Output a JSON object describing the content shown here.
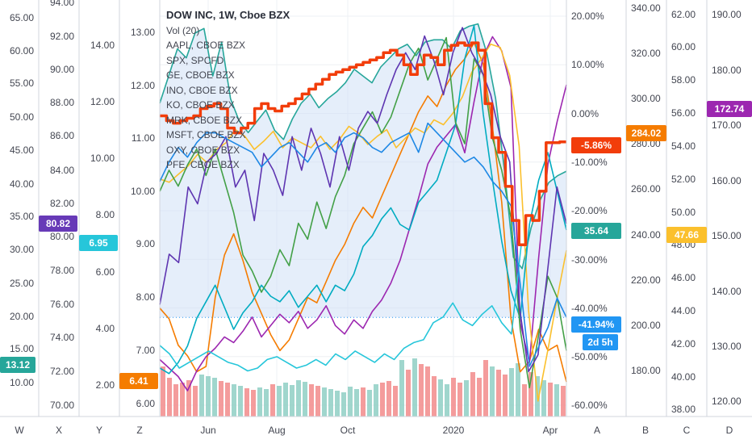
{
  "chart_data": {
    "type": "line",
    "title": "DOW INC, 1W, Cboe BZX",
    "legend": [
      "Vol (20)",
      "AAPL, CBOE BZX",
      "SPX, SPCFD",
      "GE, CBOE BZX",
      "INO, CBOE BZX",
      "KO, CBOE BZX",
      "MRK, CBOE BZX",
      "MSFT, CBOE BZX",
      "OXY, CBOE BZX",
      "PFE, CBOE BZX"
    ],
    "x_ticks": [
      "Jun",
      "Aug",
      "Oct",
      "2020",
      "Apr"
    ],
    "axes": {
      "W": {
        "ticks": [
          "65.00",
          "60.00",
          "55.00",
          "50.00",
          "45.00",
          "40.00",
          "35.00",
          "30.00",
          "25.00",
          "20.00",
          "15.00",
          "10.00"
        ],
        "badge": "13.12",
        "badge_color": "#26a69a"
      },
      "X": {
        "ticks": [
          "94.00",
          "92.00",
          "90.00",
          "88.00",
          "86.00",
          "84.00",
          "82.00",
          "80.00",
          "78.00",
          "76.00",
          "74.00",
          "72.00",
          "70.00"
        ],
        "badge": "80.82",
        "badge_color": "#673ab7"
      },
      "Y": {
        "ticks": [
          "14.00",
          "12.00",
          "10.00",
          "8.00",
          "6.00",
          "4.00",
          "2.00"
        ],
        "badge": "6.95",
        "badge_color": "#26c6da"
      },
      "Z": {
        "ticks": [
          "13.00",
          "12.00",
          "11.00",
          "10.00",
          "9.00",
          "8.00",
          "7.00",
          "6.00"
        ],
        "badge": "6.41",
        "badge_color": "#f57c00"
      },
      "A": {
        "ticks": [
          "20.00%",
          "10.00%",
          "0.00%",
          "-10.00%",
          "-20.00%",
          "-30.00%",
          "-40.00%",
          "-50.00%",
          "-60.00%"
        ],
        "badges": [
          {
            "text": "-5.86%",
            "color": "#f23d0a"
          },
          {
            "text": "35.64",
            "color": "#26a69a"
          },
          {
            "text": "-41.94%",
            "color": "#2196f3"
          },
          {
            "text": "2d 5h",
            "color": "#2196f3"
          }
        ]
      },
      "B": {
        "ticks": [
          "340.00",
          "320.00",
          "300.00",
          "280.00",
          "260.00",
          "240.00",
          "220.00",
          "200.00",
          "180.00"
        ],
        "badge": "284.02",
        "badge_color": "#f57c00"
      },
      "C": {
        "ticks": [
          "62.00",
          "60.00",
          "58.00",
          "56.00",
          "54.00",
          "52.00",
          "50.00",
          "48.00",
          "46.00",
          "44.00",
          "42.00",
          "40.00",
          "38.00"
        ],
        "badge": "47.66",
        "badge_color": "#fbc02d"
      },
      "D": {
        "ticks": [
          "190.00",
          "180.00",
          "170.00",
          "160.00",
          "150.00",
          "140.00",
          "130.00",
          "120.00"
        ],
        "badge": "172.74",
        "badge_color": "#9c27b0"
      }
    },
    "bottom_labels": [
      "W",
      "X",
      "Y",
      "Z",
      "A",
      "B",
      "C",
      "D"
    ],
    "series": [
      {
        "name": "DOW INC",
        "color": "#f23d0a",
        "width": 3.5,
        "step": true,
        "values": [
          -0.5,
          -1.5,
          -2,
          -1.5,
          -1,
          -0.5,
          1,
          1.5,
          2,
          1,
          -3,
          -4,
          -3,
          -2,
          1,
          2,
          1,
          0.5,
          1.5,
          2,
          3,
          4,
          5,
          6,
          7,
          8,
          8.5,
          9,
          9.5,
          10,
          10.5,
          11,
          11.5,
          12.5,
          13,
          12,
          10,
          8,
          10,
          12,
          11.5,
          10,
          13,
          14,
          14.5,
          14,
          14.5,
          13,
          2,
          -5,
          -8,
          -15,
          -22,
          -27,
          -21,
          -22,
          -16,
          -6,
          -6,
          -5.86
        ]
      },
      {
        "name": "SPX, SPCFD",
        "color": "#26a69a",
        "width": 1.6,
        "values": [
          298,
          310,
          322,
          318,
          329,
          331,
          310,
          325,
          300,
          290,
          285,
          290,
          295,
          286,
          282,
          291,
          298,
          302,
          296,
          300,
          303,
          307,
          313,
          310,
          307,
          314,
          318,
          322,
          324,
          319,
          325,
          326,
          326,
          322,
          330,
          332,
          333,
          320,
          300,
          268,
          230,
          225,
          243,
          255,
          263,
          266,
          268
        ]
      },
      {
        "name": "AAPL, CBOE BZX",
        "color": "#f57c00",
        "width": 1.6,
        "values": [
          7.8,
          7.6,
          7.1,
          6.9,
          6.6,
          6.7,
          8.0,
          8.8,
          9.2,
          8.7,
          8.1,
          7.7,
          7.3,
          7.0,
          7.2,
          7.6,
          8.0,
          7.9,
          8.3,
          8.7,
          9.0,
          9.4,
          9.7,
          9.5,
          9.9,
          10.3,
          10.7,
          11.1,
          11.5,
          11.8,
          11.6,
          12.0,
          12.3,
          12.5,
          12.8,
          12.4,
          11.2,
          9.8,
          7.6,
          6.6,
          6.8,
          7.4,
          7.0,
          7.1,
          6.41
        ]
      },
      {
        "name": "INO, CBOE BZX",
        "color": "#9c27b0",
        "width": 1.6,
        "values": [
          2.9,
          2.6,
          2.3,
          1.8,
          2.5,
          3.0,
          3.3,
          3.7,
          3.5,
          3.9,
          4.4,
          3.7,
          4.1,
          4.5,
          4.2,
          4.6,
          4.0,
          4.3,
          4.8,
          4.1,
          3.8,
          4.3,
          4.0,
          4.6,
          5.0,
          5.6,
          6.4,
          7.5,
          8.6,
          9.8,
          10.4,
          10.8,
          11.2,
          10.2,
          12.0,
          13.6,
          14.3,
          13.8,
          12.5,
          4.2,
          2.8,
          6.5,
          9.8,
          11.3,
          12.6
        ]
      },
      {
        "name": "KO, CBOE BZX",
        "color": "#fbc02d",
        "width": 1.6,
        "values": [
          52.0,
          51.8,
          52.3,
          52.8,
          53.5,
          53.0,
          53.8,
          54.2,
          55.0,
          54.6,
          53.8,
          54.3,
          54.9,
          53.9,
          54.5,
          54.2,
          53.9,
          54.6,
          53.8,
          54.4,
          55.2,
          54.8,
          54.1,
          54.6,
          55.0,
          53.9,
          54.5,
          55.1,
          54.8,
          55.6,
          55.3,
          56.0,
          57.0,
          58.5,
          59.3,
          60.2,
          60.0,
          58.3,
          54.0,
          44.0,
          38.5,
          41.5,
          44.7,
          47.66
        ]
      },
      {
        "name": "MSFT, CBOE BZX",
        "color": "#00acc1",
        "width": 1.6,
        "values": [
          126,
          125,
          127,
          130,
          135,
          138,
          141,
          137,
          133,
          136,
          138,
          141,
          139,
          138,
          140,
          137,
          139,
          141,
          138,
          141,
          140,
          143,
          148,
          150,
          153,
          155,
          152,
          151,
          156,
          158,
          160,
          165,
          170,
          182,
          188,
          172,
          160,
          149,
          140,
          135,
          152,
          160,
          165,
          158,
          151
        ]
      },
      {
        "name": "GE, CBOE BZX",
        "color": "#43a047",
        "width": 1.6,
        "values": [
          10.0,
          10.4,
          10.1,
          10.5,
          10.8,
          10.3,
          10.8,
          10.2,
          9.6,
          8.8,
          8.5,
          8.1,
          8.4,
          8.9,
          8.6,
          9.4,
          9.1,
          9.8,
          9.3,
          9.9,
          10.3,
          10.9,
          11.2,
          11.5,
          11.1,
          11.4,
          11.9,
          12.4,
          12.7,
          12.1,
          12.5,
          12.9,
          11.3,
          10.9,
          12.5,
          12.2,
          11.0,
          10.4,
          9.5,
          7.4,
          6.3,
          7.3,
          8.4,
          8.0,
          7.0
        ]
      },
      {
        "name": "MRK, CBOE BZX",
        "color": "#5e35b1",
        "width": 1.6,
        "values": [
          76.0,
          79.0,
          78.5,
          83.0,
          82.0,
          84.5,
          85.0,
          86.0,
          83.0,
          84.0,
          81.0,
          85.0,
          84.0,
          82.5,
          86.0,
          84.0,
          86.5,
          85.0,
          83.0,
          86.0,
          84.0,
          86.5,
          87.5,
          86.8,
          88.5,
          90.0,
          91.0,
          90.0,
          92.0,
          90.5,
          88.5,
          91.0,
          92.5,
          91.0,
          90.0,
          88.5,
          86.0,
          84.5,
          76.0,
          72.0,
          73.0,
          78.0,
          83.0,
          80.82
        ]
      },
      {
        "name": "OXY, CBOE BZX",
        "color": "#26c6da",
        "width": 1.6,
        "values": [
          3.4,
          3.1,
          2.6,
          2.8,
          3.0,
          3.2,
          3.0,
          2.8,
          2.7,
          2.5,
          2.6,
          2.9,
          3.0,
          2.8,
          2.6,
          2.7,
          2.9,
          2.7,
          3.1,
          2.9,
          3.2,
          3.0,
          2.8,
          3.1,
          2.9,
          3.3,
          3.5,
          3.6,
          4.2,
          4.4,
          4.9,
          4.3,
          4.1,
          4.5,
          4.8,
          4.2,
          3.8,
          6.95
        ]
      },
      {
        "name": "PFE, CBOE BZX",
        "color": "#1e88e5",
        "width": 1.6,
        "values": [
          -14,
          -10,
          -7,
          -9,
          -6,
          -4,
          -4,
          -5,
          -6,
          -7,
          -8,
          -11,
          -9,
          -7,
          -6,
          -8,
          -10,
          -7,
          -6,
          -8,
          -5,
          -4,
          -5,
          -7,
          -8,
          -6,
          -5,
          -4,
          -8,
          -2,
          -4,
          -6,
          -8,
          -10,
          -9,
          -11,
          -14,
          -16,
          -19,
          -35,
          -52,
          -48,
          -44,
          -38,
          -41.94
        ]
      }
    ],
    "volume": {
      "values": [
        62,
        48,
        40,
        42,
        45,
        38,
        52,
        50,
        48,
        44,
        42,
        40,
        38,
        35,
        33,
        36,
        34,
        40,
        38,
        42,
        39,
        45,
        43,
        40,
        38,
        36,
        34,
        32,
        30,
        37,
        34,
        36,
        33,
        40,
        42,
        44,
        38,
        70,
        58,
        72,
        65,
        62,
        50,
        46,
        40,
        48,
        42,
        45,
        55,
        48,
        70,
        62,
        58,
        52,
        60,
        66,
        40,
        55,
        50,
        45,
        42,
        40,
        38
      ],
      "colors_pattern": [
        "#f28b8b",
        "#f28b8b",
        "#f28b8b",
        "#f28b8b",
        "#f28b8b",
        "#f28b8b",
        "#8fcfc4",
        "#8fcfc4",
        "#8fcfc4",
        "#f28b8b",
        "#f28b8b",
        "#8fcfc4",
        "#8fcfc4",
        "#f28b8b",
        "#f28b8b",
        "#8fcfc4",
        "#8fcfc4",
        "#f28b8b",
        "#8fcfc4",
        "#8fcfc4",
        "#8fcfc4",
        "#8fcfc4",
        "#8fcfc4",
        "#f28b8b",
        "#f28b8b",
        "#8fcfc4",
        "#8fcfc4",
        "#8fcfc4",
        "#8fcfc4",
        "#8fcfc4",
        "#8fcfc4",
        "#f28b8b",
        "#8fcfc4",
        "#8fcfc4",
        "#f28b8b",
        "#f28b8b",
        "#f28b8b",
        "#8fcfc4",
        "#f28b8b",
        "#8fcfc4",
        "#f28b8b",
        "#f28b8b",
        "#f28b8b",
        "#8fcfc4",
        "#8fcfc4",
        "#f28b8b",
        "#f28b8b",
        "#8fcfc4",
        "#f28b8b",
        "#f28b8b",
        "#f28b8b",
        "#8fcfc4",
        "#f28b8b",
        "#f28b8b",
        "#8fcfc4",
        "#8fcfc4",
        "#f28b8b",
        "#f28b8b",
        "#8fcfc4",
        "#8fcfc4",
        "#f28b8b",
        "#8fcfc4",
        "#f28b8b"
      ]
    },
    "colors": {
      "grid": "#eef0f4",
      "axis_text": "#434651",
      "separator": "#d1d4dc",
      "area_fill": "#cfe0f5"
    }
  }
}
